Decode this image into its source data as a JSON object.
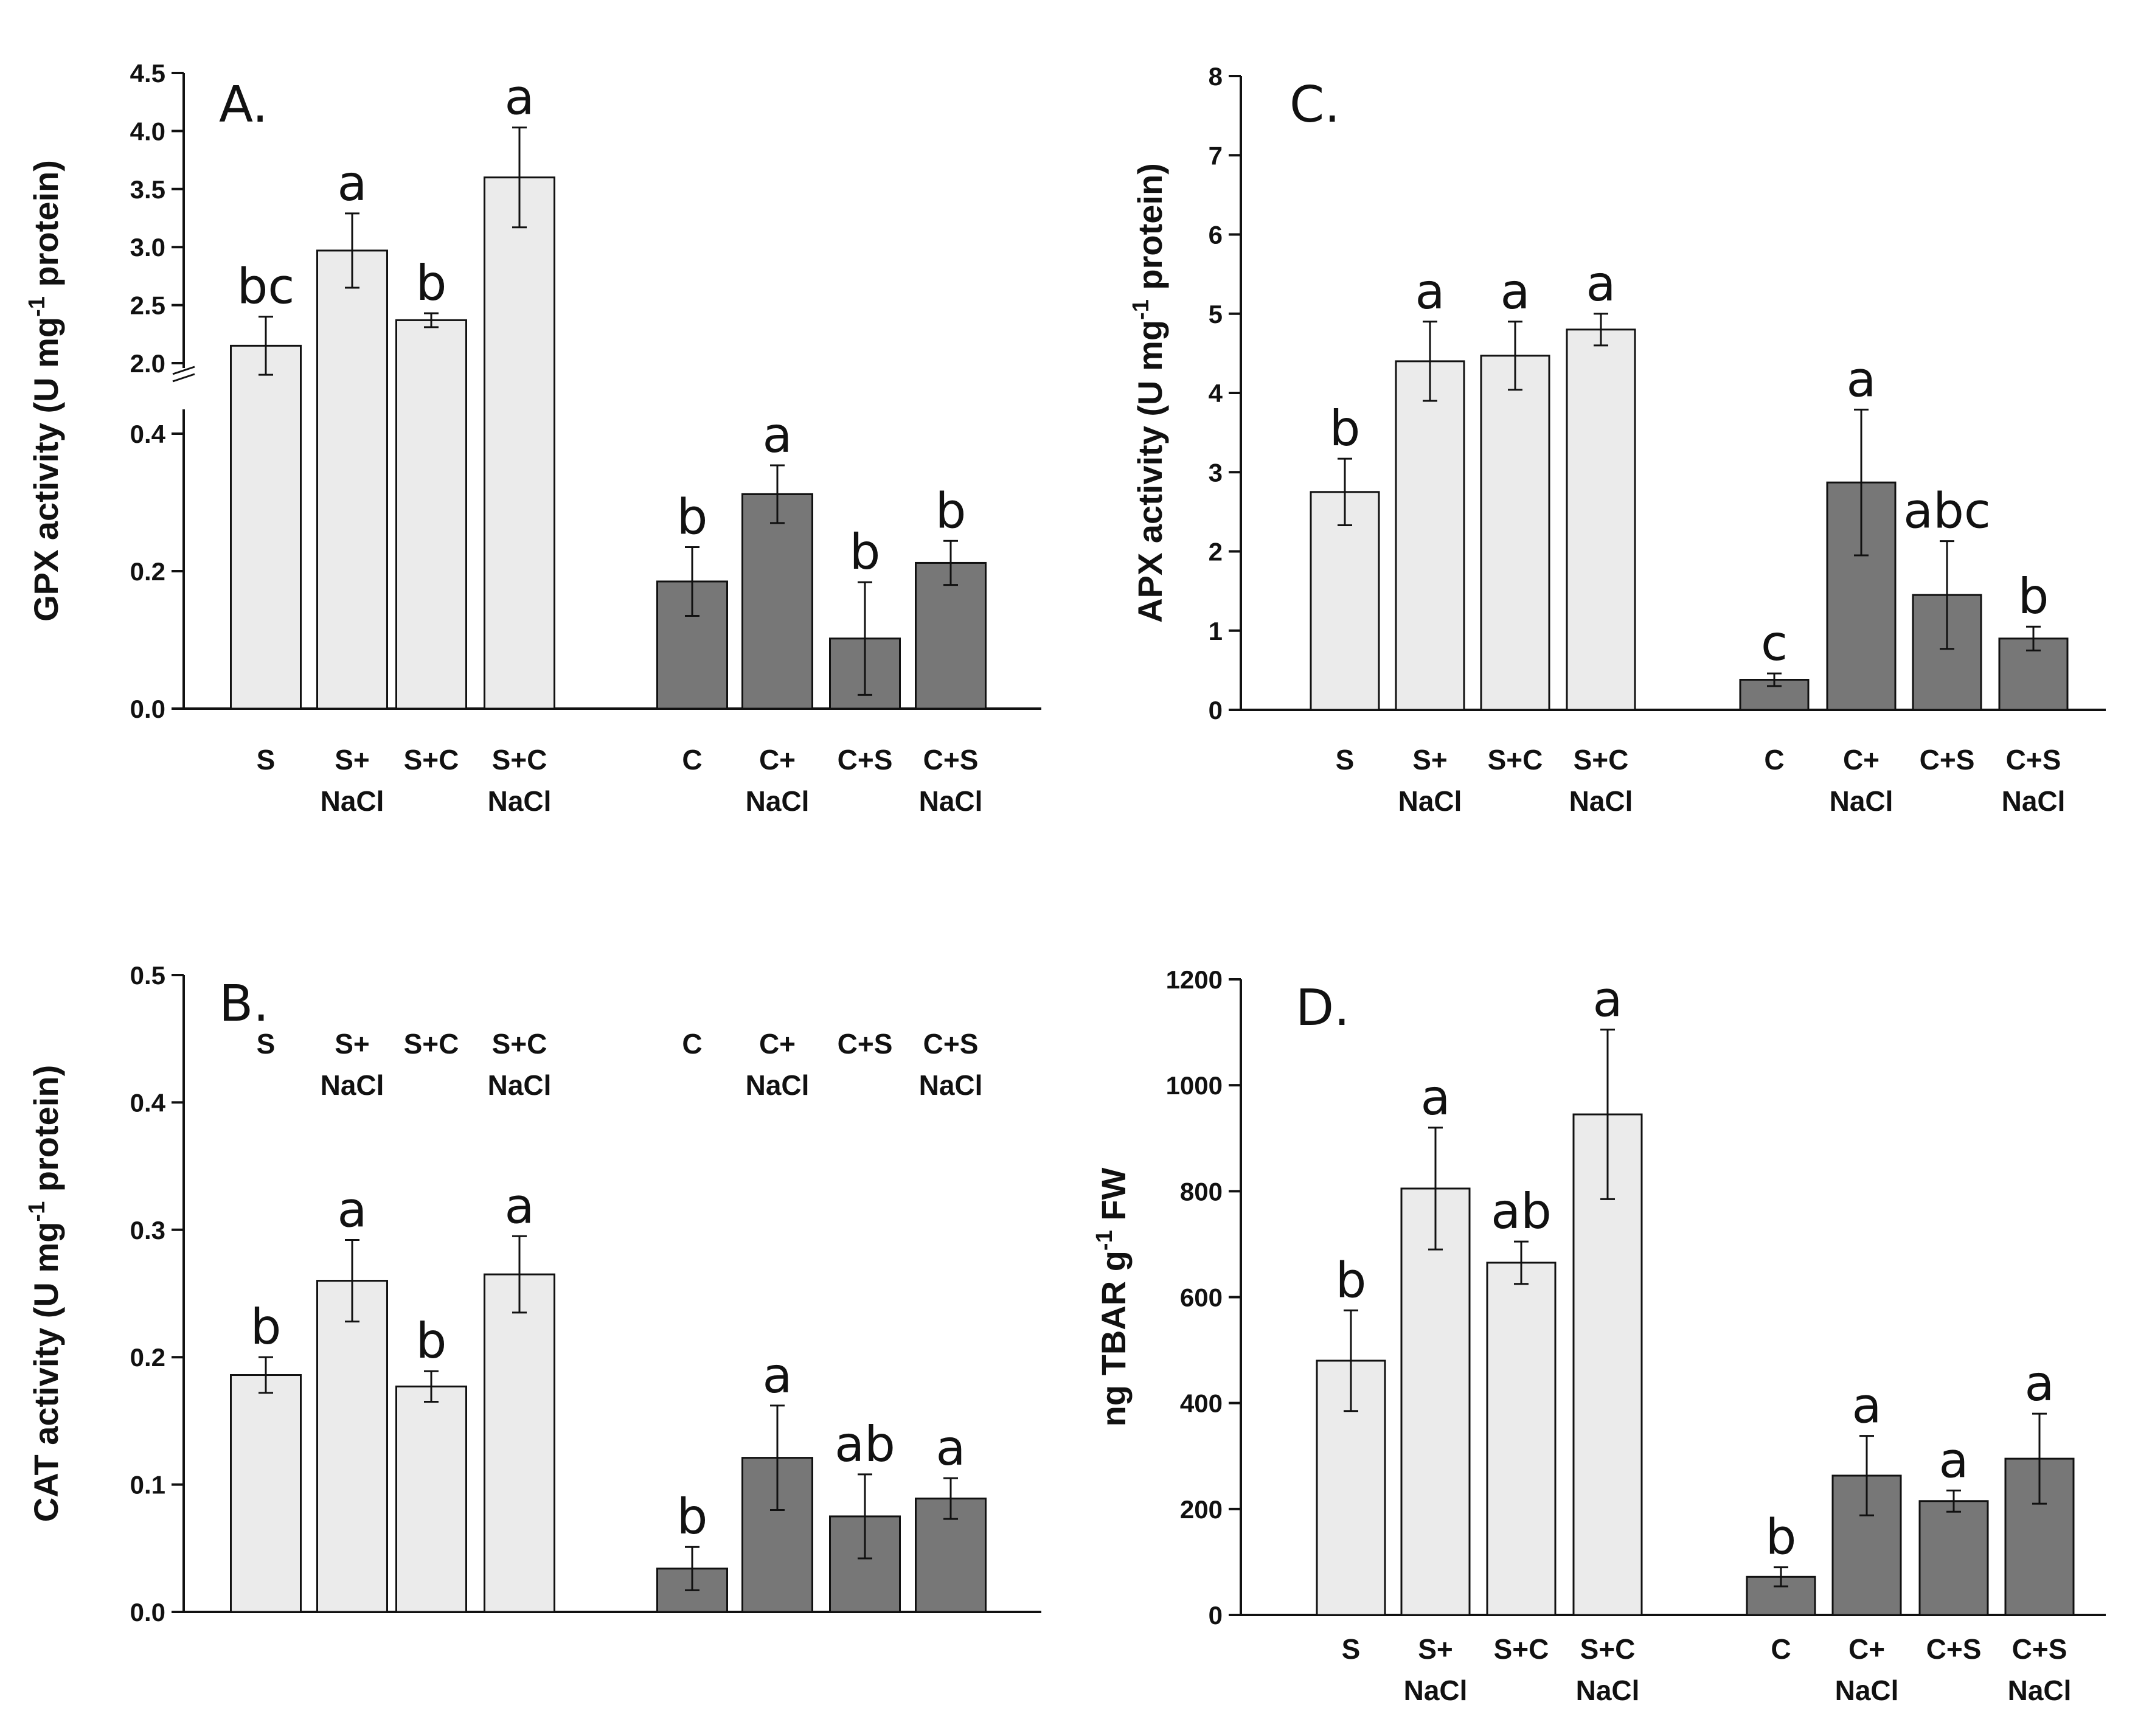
{
  "chart_data": [
    {
      "panel": "A.",
      "type": "bar",
      "ylabel": "GPX activity (U mg⁻¹ protein)",
      "axis_break": true,
      "lower_segment": {
        "ylim": [
          0,
          0.4
        ],
        "ticks": [
          "0.0",
          "0.2",
          "0.4"
        ]
      },
      "upper_segment": {
        "ylim": [
          2.0,
          4.5
        ],
        "ticks": [
          "2.0",
          "2.5",
          "3.0",
          "3.5",
          "4.0",
          "4.5"
        ]
      },
      "groups": [
        {
          "color": "#ebebeb",
          "categories": [
            "S",
            "S+\nNaCl",
            "S+C",
            "S+C\nNaCl"
          ],
          "values": [
            2.15,
            2.97,
            2.37,
            3.6
          ],
          "errors": [
            0.25,
            0.32,
            0.06,
            0.43
          ],
          "letters": [
            "bc",
            "a",
            "b",
            "a"
          ]
        },
        {
          "color": "#777777",
          "categories": [
            "C",
            "C+\nNaCl",
            "C+S",
            "C+S\nNaCl"
          ],
          "values": [
            0.185,
            0.312,
            0.102,
            0.212
          ],
          "errors": [
            0.05,
            0.042,
            0.082,
            0.032
          ],
          "letters": [
            "b",
            "a",
            "b",
            "b"
          ]
        }
      ]
    },
    {
      "panel": "B.",
      "type": "bar",
      "ylabel": "CAT activity (U mg⁻¹ protein)",
      "ylim": [
        0,
        0.5
      ],
      "ticks": [
        "0.0",
        "0.1",
        "0.2",
        "0.3",
        "0.4",
        "0.5"
      ],
      "groups": [
        {
          "color": "#ebebeb",
          "categories": [
            "S",
            "S+\nNaCl",
            "S+C",
            "S+C\nNaCl"
          ],
          "values": [
            0.186,
            0.26,
            0.177,
            0.265
          ],
          "errors": [
            0.014,
            0.032,
            0.012,
            0.03
          ],
          "letters": [
            "b",
            "a",
            "b",
            "a"
          ]
        },
        {
          "color": "#777777",
          "categories": [
            "C",
            "C+\nNaCl",
            "C+S",
            "C+S\nNaCl"
          ],
          "values": [
            0.034,
            0.121,
            0.075,
            0.089
          ],
          "errors": [
            0.017,
            0.041,
            0.033,
            0.016
          ],
          "letters": [
            "b",
            "a",
            "ab",
            "a"
          ]
        }
      ]
    },
    {
      "panel": "C.",
      "type": "bar",
      "ylabel": "APX activity (U mg⁻¹ protein)",
      "ylim": [
        0,
        8
      ],
      "ticks": [
        "0",
        "1",
        "2",
        "3",
        "4",
        "5",
        "6",
        "7",
        "8"
      ],
      "groups": [
        {
          "color": "#ebebeb",
          "categories": [
            "S",
            "S+\nNaCl",
            "S+C",
            "S+C\nNaCl"
          ],
          "values": [
            2.75,
            4.4,
            4.47,
            4.8
          ],
          "errors": [
            0.42,
            0.5,
            0.43,
            0.2
          ],
          "letters": [
            "b",
            "a",
            "a",
            "a"
          ]
        },
        {
          "color": "#777777",
          "categories": [
            "C",
            "C+\nNaCl",
            "C+S",
            "C+S\nNaCl"
          ],
          "values": [
            0.38,
            2.87,
            1.45,
            0.9
          ],
          "errors": [
            0.08,
            0.92,
            0.68,
            0.15
          ],
          "letters": [
            "c",
            "a",
            "abc",
            "b"
          ]
        }
      ]
    },
    {
      "panel": "D.",
      "type": "bar",
      "ylabel": "ng TBAR g⁻¹ FW",
      "ylim": [
        0,
        1200
      ],
      "ticks": [
        "0",
        "200",
        "400",
        "600",
        "800",
        "1000",
        "1200"
      ],
      "groups": [
        {
          "color": "#ebebeb",
          "categories": [
            "S",
            "S+\nNaCl",
            "S+C",
            "S+C\nNaCl"
          ],
          "values": [
            480,
            805,
            665,
            945
          ],
          "errors": [
            95,
            115,
            40,
            160
          ],
          "letters": [
            "b",
            "a",
            "ab",
            "a"
          ]
        },
        {
          "color": "#777777",
          "categories": [
            "C",
            "C+\nNaCl",
            "C+S",
            "C+S\nNaCl"
          ],
          "values": [
            72,
            263,
            215,
            295
          ],
          "errors": [
            18,
            75,
            20,
            85
          ],
          "letters": [
            "b",
            "a",
            "a",
            "a"
          ]
        }
      ]
    }
  ]
}
